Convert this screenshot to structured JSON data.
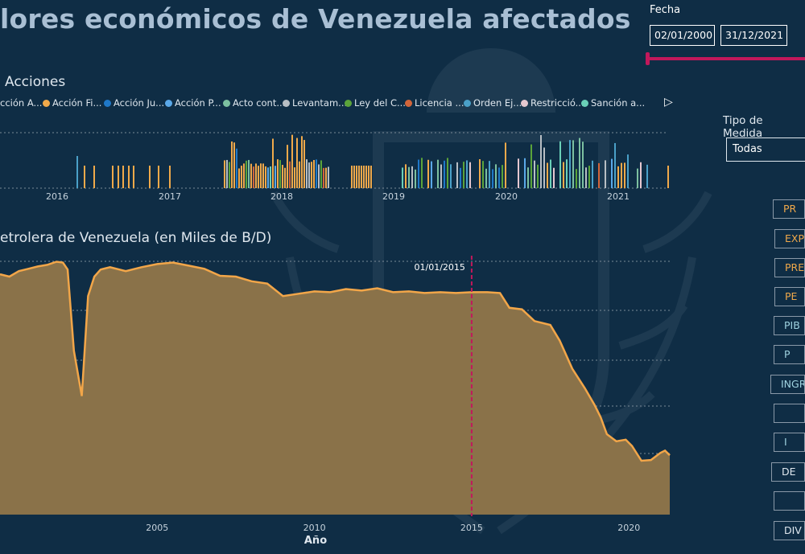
{
  "title": "lores económicos de Venezuela afectados",
  "date_filter": {
    "label": "Fecha",
    "start": "02/01/2000",
    "end": "31/12/2021"
  },
  "acciones": {
    "title": "Acciones",
    "legend": [
      {
        "label": "cción A...",
        "color": "#dfe7ee"
      },
      {
        "label": "Acción Fi...",
        "color": "#f0a94a"
      },
      {
        "label": "Acción Ju...",
        "color": "#1f78c8"
      },
      {
        "label": "Acción P...",
        "color": "#5aa8e8"
      },
      {
        "label": "Acto cont...",
        "color": "#7cc0a0"
      },
      {
        "label": "Levantam...",
        "color": "#b8bec4"
      },
      {
        "label": "Ley del C...",
        "color": "#5aa33a"
      },
      {
        "label": "Licencia ...",
        "color": "#d2653a"
      },
      {
        "label": "Orden Ej...",
        "color": "#4aa0c8"
      },
      {
        "label": "Restricció...",
        "color": "#e6c8d0"
      },
      {
        "label": "Sanción a...",
        "color": "#6ad0b8"
      }
    ],
    "years": [
      "2016",
      "2017",
      "2018",
      "2019",
      "2020",
      "2021"
    ]
  },
  "production_chart": {
    "title": "etrolera de Venezuela (en Miles de B/D)",
    "x_axis_title": "Año",
    "x_ticks": [
      "2005",
      "2010",
      "2015",
      "2020"
    ],
    "marker_label": "01/01/2015",
    "line_color": "#f2a649",
    "area_color": "#8a7249",
    "marker_color": "#c2185b"
  },
  "tipo_medida": {
    "label": "Tipo de Medida",
    "value": "Todas"
  },
  "side_buttons": [
    {
      "label": "PR",
      "color": "#f0a94a"
    },
    {
      "label": "EXP",
      "color": "#f0a94a"
    },
    {
      "label": "PRE",
      "color": "#f0a94a"
    },
    {
      "label": "PE",
      "color": "#f0a94a"
    },
    {
      "label": "PIB",
      "color": "#9fd3e0"
    },
    {
      "label": "P",
      "color": "#9fd3e0"
    },
    {
      "label": "INGR",
      "color": "#9fd3e0"
    },
    {
      "label": "",
      "color": "#9fd3e0"
    },
    {
      "label": "I",
      "color": "#9fd3e0"
    },
    {
      "label": "DE",
      "color": "#dfe7ee"
    },
    {
      "label": "",
      "color": "#dfe7ee"
    },
    {
      "label": "DIV",
      "color": "#dfe7ee"
    }
  ],
  "chart_data": {
    "type": "area",
    "title": "etrolera de Venezuela (en Miles de B/D)",
    "xlabel": "Año",
    "ylabel": "",
    "x_range": [
      "2000-01",
      "2021-04"
    ],
    "annotation": {
      "x": "2015-01",
      "label": "01/01/2015"
    },
    "series": [
      {
        "values": [
          [
            2000.0,
            3080
          ],
          [
            2000.3,
            3050
          ],
          [
            2000.6,
            3120
          ],
          [
            2000.9,
            3150
          ],
          [
            2001.2,
            3180
          ],
          [
            2001.5,
            3200
          ],
          [
            2001.8,
            3240
          ],
          [
            2002.0,
            3230
          ],
          [
            2002.15,
            3140
          ],
          [
            2002.35,
            2100
          ],
          [
            2002.6,
            1520
          ],
          [
            2002.8,
            2800
          ],
          [
            2003.0,
            3050
          ],
          [
            2003.2,
            3140
          ],
          [
            2003.5,
            3170
          ],
          [
            2004.0,
            3120
          ],
          [
            2004.5,
            3170
          ],
          [
            2005.0,
            3210
          ],
          [
            2005.5,
            3230
          ],
          [
            2006.0,
            3190
          ],
          [
            2006.5,
            3150
          ],
          [
            2007.0,
            3060
          ],
          [
            2007.5,
            3050
          ],
          [
            2008.0,
            2990
          ],
          [
            2008.5,
            2960
          ],
          [
            2009.0,
            2800
          ],
          [
            2009.5,
            2830
          ],
          [
            2010.0,
            2860
          ],
          [
            2010.5,
            2850
          ],
          [
            2011.0,
            2890
          ],
          [
            2011.5,
            2870
          ],
          [
            2012.0,
            2900
          ],
          [
            2012.5,
            2850
          ],
          [
            2013.0,
            2860
          ],
          [
            2013.5,
            2840
          ],
          [
            2014.0,
            2850
          ],
          [
            2014.5,
            2840
          ],
          [
            2015.0,
            2850
          ],
          [
            2015.5,
            2850
          ],
          [
            2015.9,
            2840
          ],
          [
            2016.2,
            2650
          ],
          [
            2016.6,
            2630
          ],
          [
            2017.0,
            2480
          ],
          [
            2017.5,
            2430
          ],
          [
            2017.8,
            2230
          ],
          [
            2018.2,
            1870
          ],
          [
            2018.6,
            1620
          ],
          [
            2018.9,
            1410
          ],
          [
            2019.1,
            1250
          ],
          [
            2019.3,
            1030
          ],
          [
            2019.6,
            940
          ],
          [
            2019.9,
            960
          ],
          [
            2020.1,
            880
          ],
          [
            2020.4,
            690
          ],
          [
            2020.7,
            700
          ],
          [
            2021.0,
            790
          ],
          [
            2021.15,
            820
          ],
          [
            2021.3,
            760
          ]
        ]
      }
    ]
  }
}
